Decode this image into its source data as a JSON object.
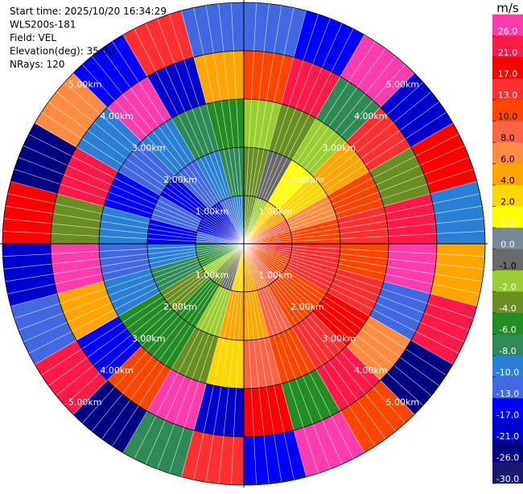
{
  "chart_data": {
    "type": "ppi",
    "header": [
      "Start time: 2025/10/20 16:34:29",
      "WLS200s-181",
      "Field: VEL",
      "Elevation(deg): 35.00",
      "NRays: 120"
    ],
    "rings": [
      {
        "value": 1,
        "label": "1.00km"
      },
      {
        "value": 2,
        "label": "2.00km"
      },
      {
        "value": 3,
        "label": "3.00km"
      },
      {
        "value": 4,
        "label": "4.00km"
      },
      {
        "value": 5,
        "label": "5.00km"
      }
    ],
    "values": [
      [
        -4,
        -4,
        -2,
        10,
        -13
      ],
      [
        -2,
        -1,
        -4,
        21,
        -17
      ],
      [
        2,
        1,
        -2,
        -8,
        26
      ],
      [
        4,
        2,
        4,
        13,
        -21
      ],
      [
        8,
        6,
        10,
        -4,
        17
      ],
      [
        10,
        10,
        13,
        21,
        -10
      ],
      [
        13,
        13,
        10,
        26,
        4
      ],
      [
        10,
        13,
        13,
        -13,
        21
      ],
      [
        10,
        10,
        17,
        6,
        -26
      ],
      [
        8,
        10,
        13,
        21,
        10
      ],
      [
        6,
        8,
        10,
        -6,
        26
      ],
      [
        4,
        4,
        8,
        17,
        -17
      ],
      [
        2,
        4,
        2,
        -21,
        13
      ],
      [
        -1,
        -2,
        -4,
        26,
        -8
      ],
      [
        -4,
        -6,
        -6,
        10,
        -26
      ],
      [
        -2,
        -4,
        -6,
        -17,
        21
      ],
      [
        -6,
        -8,
        -10,
        4,
        -13
      ],
      [
        -8,
        -10,
        -13,
        26,
        -21
      ],
      [
        -13,
        -17,
        -10,
        -4,
        17
      ],
      [
        -17,
        -13,
        -17,
        21,
        -26
      ],
      [
        -21,
        -17,
        -13,
        -10,
        6
      ],
      [
        -17,
        -13,
        -10,
        26,
        -17
      ],
      [
        -13,
        -10,
        -8,
        -21,
        13
      ],
      [
        -10,
        -8,
        -6,
        4,
        -13
      ]
    ],
    "colorbar": {
      "title": "m/s",
      "clim": [
        -30,
        30
      ],
      "ticks": [
        {
          "value": -30,
          "label": "-30.0"
        },
        {
          "value": -26,
          "label": "-26.0"
        },
        {
          "value": -21,
          "label": "-21.0"
        },
        {
          "value": -17,
          "label": "-17.0"
        },
        {
          "value": -13,
          "label": "-13.0"
        },
        {
          "value": -10,
          "label": "-10.0"
        },
        {
          "value": -8,
          "label": "-8.0"
        },
        {
          "value": -6,
          "label": "-6.0"
        },
        {
          "value": -4,
          "label": "-4.0"
        },
        {
          "value": -2,
          "label": "-2.0"
        },
        {
          "value": -1,
          "label": "-1.0"
        },
        {
          "value": 0,
          "label": "0.0"
        },
        {
          "value": 1,
          "label": "1.0"
        },
        {
          "value": 2,
          "label": "2.0"
        },
        {
          "value": 4,
          "label": "4.0"
        },
        {
          "value": 6,
          "label": "6.0"
        },
        {
          "value": 8,
          "label": "8.0"
        },
        {
          "value": 10,
          "label": "10.0"
        },
        {
          "value": 13,
          "label": "13.0"
        },
        {
          "value": 17,
          "label": "17.0"
        },
        {
          "value": 21,
          "label": "21.0"
        },
        {
          "value": 26,
          "label": "26.0"
        }
      ],
      "colors": [
        "#191970",
        "#000080",
        "#0000cd",
        "#0000ff",
        "#4169e1",
        "#2a80d4",
        "#2e8b57",
        "#228b22",
        "#6b8e23",
        "#9acd32",
        "#696969",
        "#778899",
        "#ffff00",
        "#ffd700",
        "#ffa500",
        "#ff8c40",
        "#ff6347",
        "#ff4500",
        "#ff3030",
        "#ff0000",
        "#ff1a4a",
        "#ff3cac"
      ]
    }
  }
}
